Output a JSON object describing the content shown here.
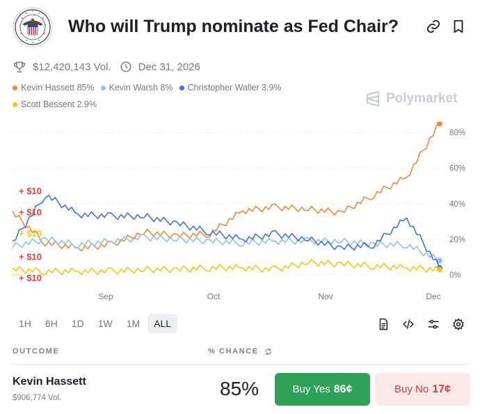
{
  "market": {
    "title": "Who will Trump nominate as Fed Chair?",
    "volume": "$12,420,143 Vol.",
    "end_date": "Dec 31, 2026"
  },
  "icons": {
    "seal": "federal-reserve-seal-icon",
    "link": "link-icon",
    "bookmark": "bookmark-icon",
    "trophy": "trophy-icon",
    "clock": "clock-icon"
  },
  "legend": [
    {
      "label": "Kevin Hassett 85%",
      "color": "#f08a3a"
    },
    {
      "label": "Kevin Warsh 8%",
      "color": "#8fc0f0"
    },
    {
      "label": "Christopher Waller 3.9%",
      "color": "#3f74e0"
    },
    {
      "label": "Scott Bessent 2.9%",
      "color": "#f5c518"
    }
  ],
  "brand": "Polymarket",
  "chart_data": {
    "type": "line",
    "x_ticks": [
      "Sep",
      "Oct",
      "Nov",
      "Dec"
    ],
    "y_ticks": [
      "0%",
      "20%",
      "40%",
      "60%",
      "80%"
    ],
    "ylim": [
      0,
      90
    ],
    "grid": true,
    "x": [
      "Aug 12",
      "Aug 20",
      "Sep 1",
      "Sep 10",
      "Sep 20",
      "Oct 1",
      "Oct 10",
      "Oct 20",
      "Nov 1",
      "Nov 10",
      "Nov 20",
      "Nov 27",
      "Dec 1",
      "Dec 3"
    ],
    "series": [
      {
        "name": "Kevin Hassett",
        "color": "#f08a3a",
        "values": [
          35,
          18,
          15,
          17,
          24,
          22,
          23,
          36,
          38,
          37,
          35,
          45,
          55,
          85
        ]
      },
      {
        "name": "Kevin Warsh",
        "color": "#8fc0f0",
        "values": [
          16,
          20,
          17,
          19,
          21,
          20,
          19,
          18,
          19,
          19,
          19,
          17,
          17,
          8
        ]
      },
      {
        "name": "Christopher Waller",
        "color": "#3f74e0",
        "values": [
          18,
          45,
          34,
          33,
          33,
          29,
          24,
          20,
          23,
          20,
          15,
          17,
          32,
          3.9
        ]
      },
      {
        "name": "Scott Bessent",
        "color": "#f5c518",
        "values": [
          3,
          2,
          2,
          2,
          3,
          3,
          4,
          4,
          3,
          7,
          6,
          5,
          4,
          2.9
        ]
      }
    ],
    "annotations": [
      {
        "label": "+ $10",
        "color": "#e2433d",
        "value": 47
      },
      {
        "label": "+ $10",
        "color": "#e2433d",
        "value": 35
      },
      {
        "label": "+ $10",
        "color": "#f5c518",
        "value": 23
      },
      {
        "label": "+ $10",
        "color": "#e2433d",
        "value": 10
      },
      {
        "label": "+ $10",
        "color": "#e2433d",
        "value": -2
      }
    ]
  },
  "timeframes": [
    "1H",
    "6H",
    "1D",
    "1W",
    "1M",
    "ALL"
  ],
  "active_timeframe": "ALL",
  "tools": [
    "document-icon",
    "code-embed-icon",
    "filter-sliders-icon",
    "settings-gear-icon"
  ],
  "table": {
    "outcome_header": "OUTCOME",
    "chance_header": "% CHANCE",
    "row": {
      "name": "Kevin Hassett",
      "volume": "$906,774 Vol.",
      "chance": "85%",
      "buy_yes_label": "Buy Yes",
      "buy_yes_price": "86¢",
      "buy_no_label": "Buy No",
      "buy_no_price": "17¢"
    }
  }
}
